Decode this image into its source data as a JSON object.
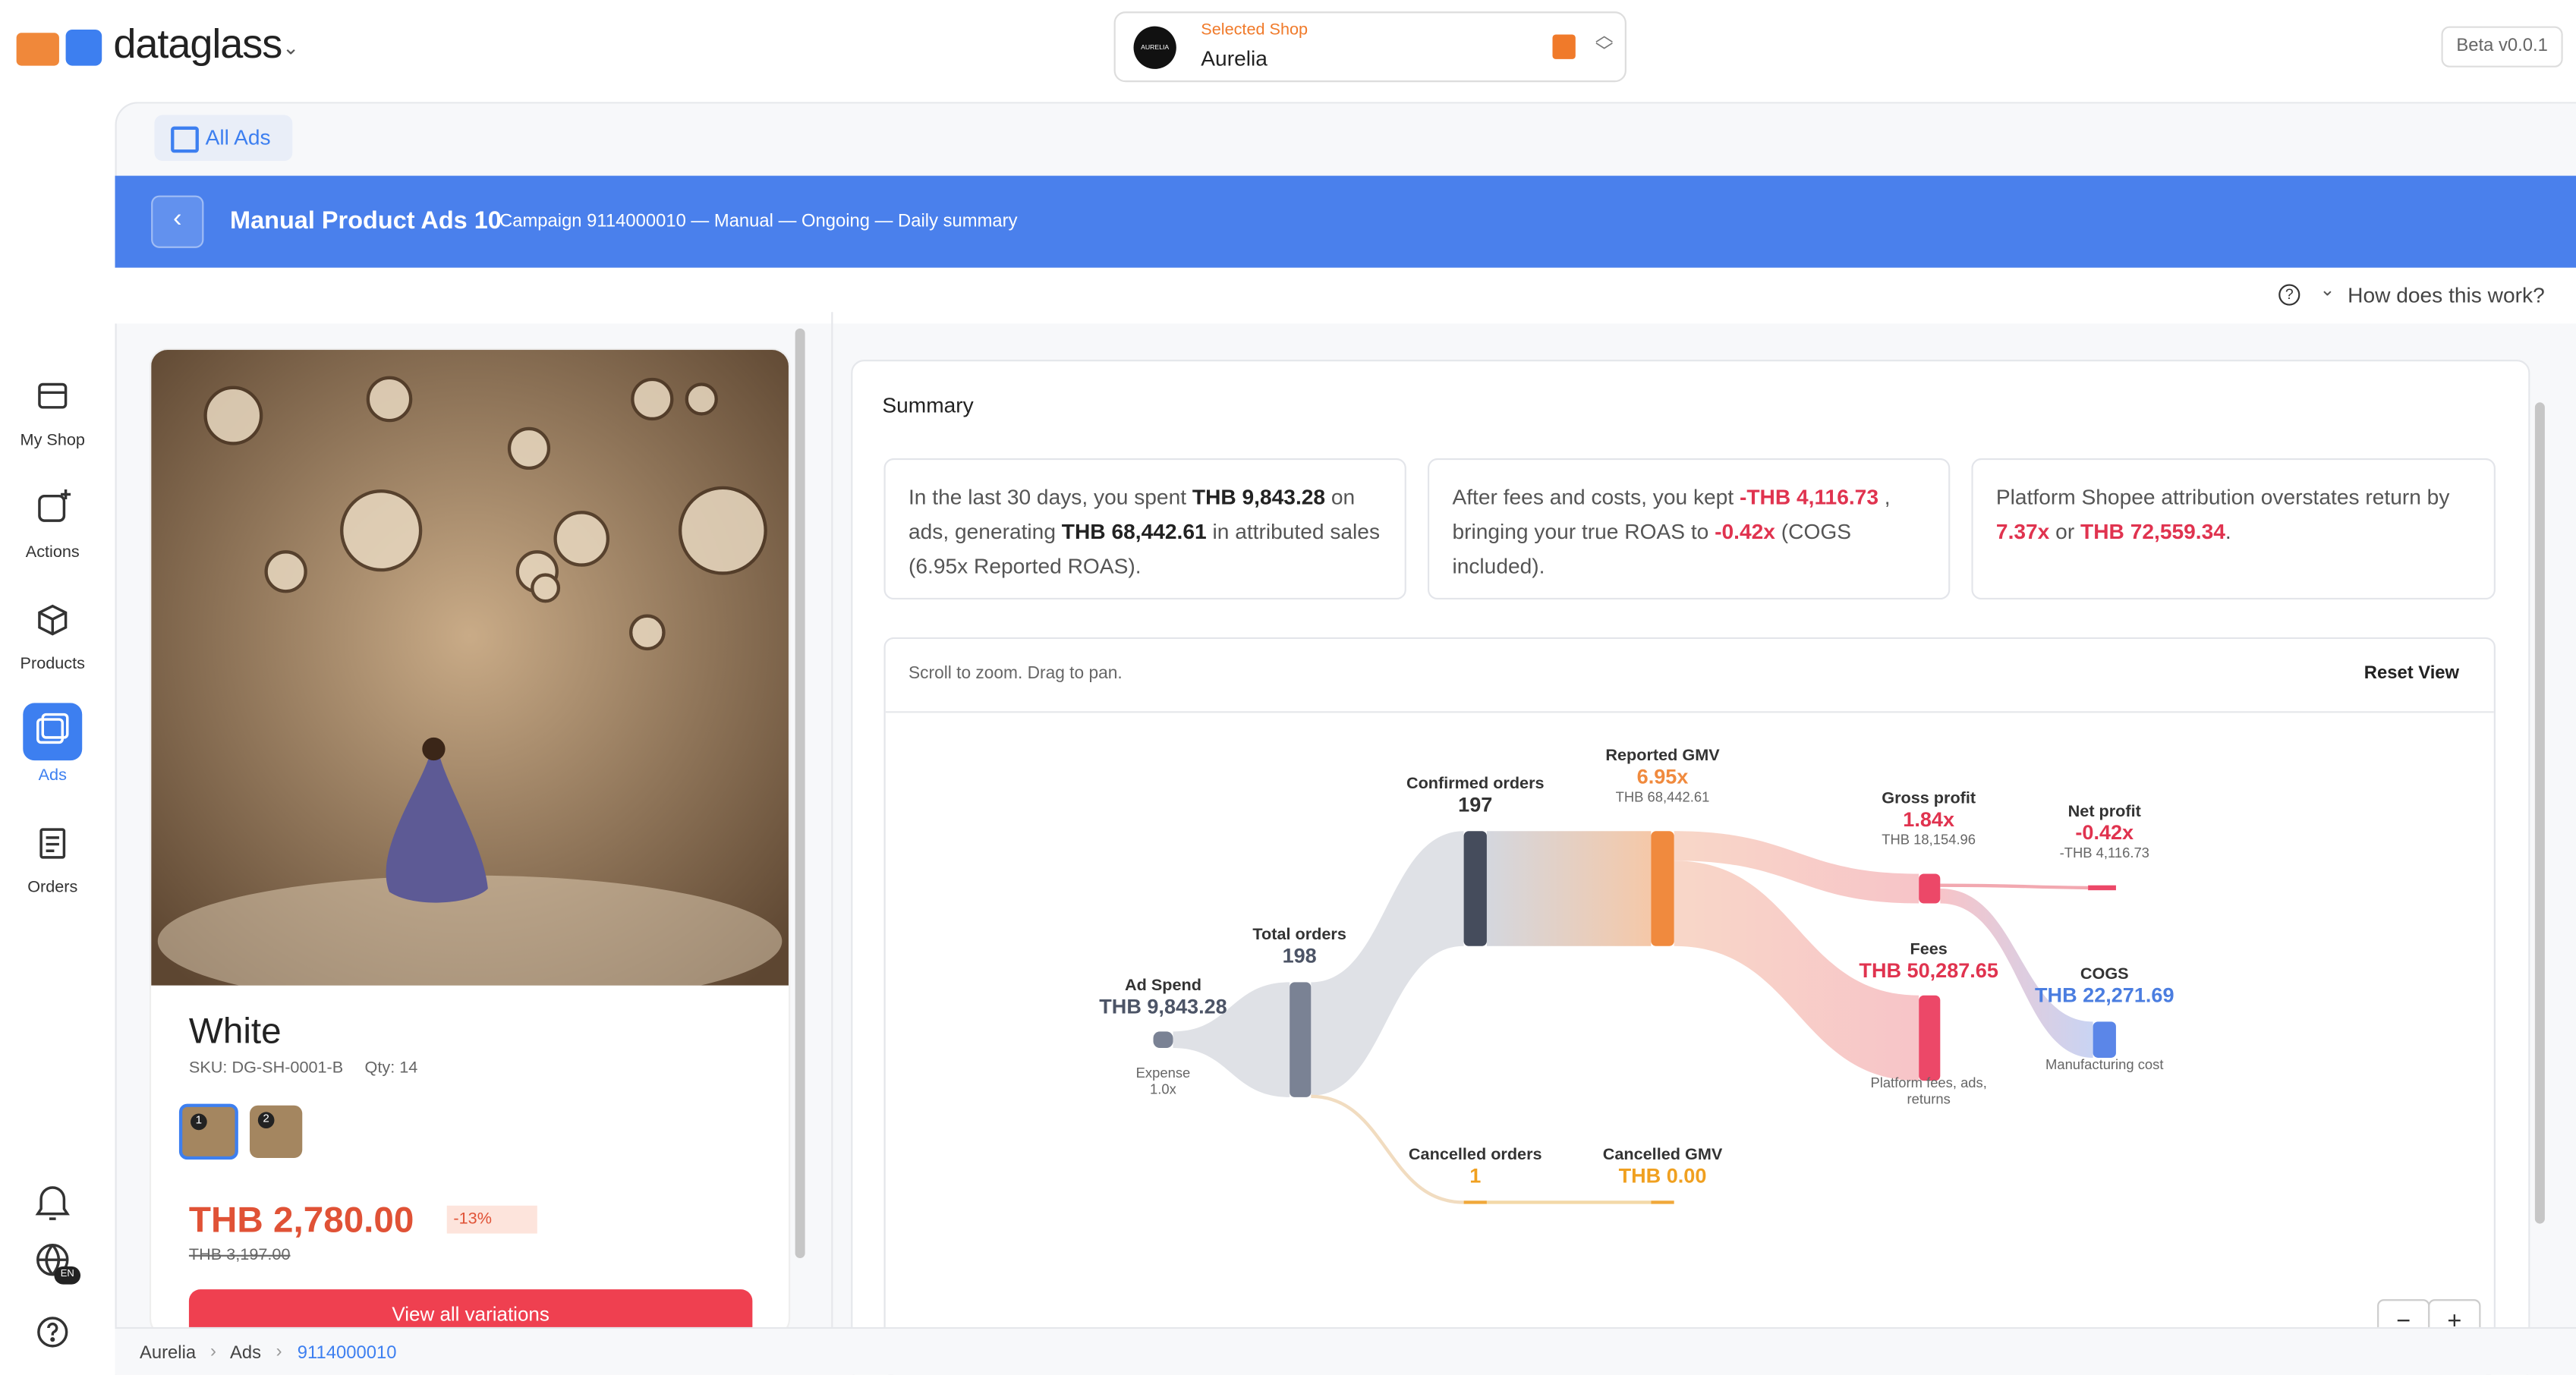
{
  "brand": "dataglass",
  "shop": {
    "caption": "Selected Shop",
    "name": "Aurelia",
    "logo": "AURELIA"
  },
  "version": "Beta v0.0.1",
  "sidebar": [
    "My Shop",
    "Actions",
    "Products",
    "Ads",
    "Orders"
  ],
  "language": "EN",
  "tab": "All Ads",
  "banner": {
    "title": "Manual Product Ads 10",
    "subtitle": "Campaign 9114000010 — Manual — Ongoing — Daily summary"
  },
  "help": "How does this work?",
  "product": {
    "name": "White",
    "sku": "SKU: DG-SH-0001-B",
    "qty": "Qty: 14",
    "thumbs": [
      "1",
      "2"
    ],
    "price": "THB 2,780.00",
    "discount": "-13%",
    "old_price": "THB 3,197.00",
    "button": "View all variations"
  },
  "summary": {
    "title": "Summary",
    "cards": [
      [
        "In the last 30 days, you spent ",
        "THB 9,843.28",
        " on ads, generating ",
        "THB 68,442.61",
        " in attributed sales (6.95x Reported ROAS)."
      ],
      [
        "After fees and costs, you kept ",
        "-THB 4,116.73",
        " , bringing your true ROAS to ",
        "-0.42x",
        " (COGS included)."
      ],
      [
        "Platform Shopee attribution overstates return by ",
        "7.37x",
        " or ",
        "THB 72,559.34",
        "."
      ]
    ]
  },
  "chart": {
    "hint": "Scroll to zoom. Drag to pan.",
    "reset": "Reset View",
    "zoom": [
      "−",
      "+"
    ],
    "nodes": [
      {
        "title": "Ad Spend",
        "value": "THB 9,843.28",
        "note": "Expense 1.0x"
      },
      {
        "title": "Total orders",
        "value": "198"
      },
      {
        "title": "Confirmed orders",
        "value": "197"
      },
      {
        "title": "Reported GMV",
        "value": "6.95x",
        "note": "THB 68,442.61"
      },
      {
        "title": "Gross profit",
        "value": "1.84x",
        "note": "THB 18,154.96"
      },
      {
        "title": "Net profit",
        "value": "-0.42x",
        "note": "-THB 4,116.73"
      },
      {
        "title": "Fees",
        "value": "THB 50,287.65",
        "note": "Platform fees, ads, returns"
      },
      {
        "title": "COGS",
        "value": "THB 22,271.69",
        "note": "Manufacturing cost"
      },
      {
        "title": "Cancelled orders",
        "value": "1"
      },
      {
        "title": "Cancelled GMV",
        "value": "THB 0.00"
      }
    ]
  },
  "breadcrumb": [
    "Aurelia",
    "Ads",
    "9114000010"
  ]
}
